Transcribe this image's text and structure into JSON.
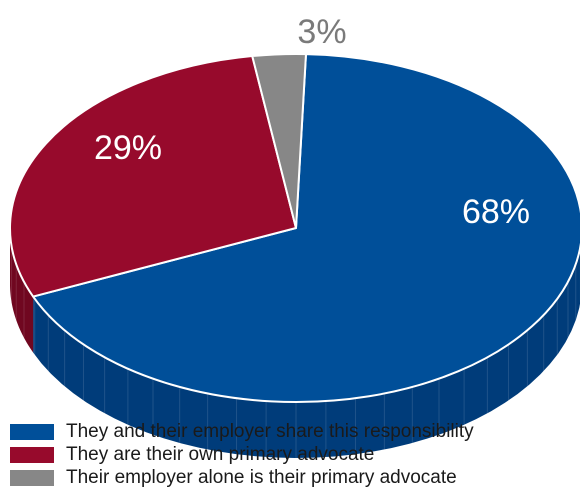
{
  "chart_data": {
    "type": "pie",
    "slices": [
      {
        "label": "They and their employer share this responsibility",
        "value": 68,
        "display": "68%",
        "color": "#004f99",
        "side_color": "#003c7a",
        "label_color": "#ffffff"
      },
      {
        "label": "They are their own primary advocate",
        "value": 29,
        "display": "29%",
        "color": "#970a2c",
        "side_color": "#700720",
        "label_color": "#ffffff"
      },
      {
        "label": "Their employer alone is their primary advocate",
        "value": 3,
        "display": "3%",
        "color": "#878787",
        "side_color": "#6a6a6a",
        "label_color": "#7a7a7a"
      }
    ],
    "legend_position": "bottom-left"
  }
}
